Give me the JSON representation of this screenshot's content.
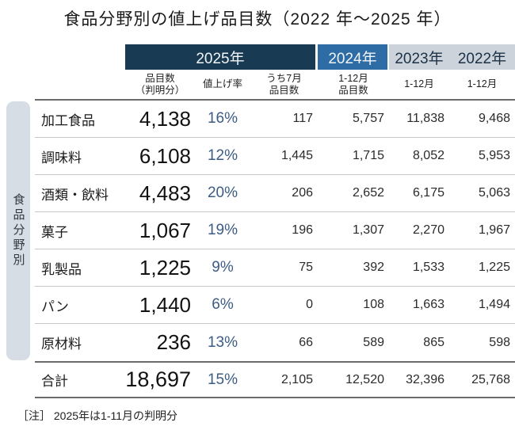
{
  "title": "食品分野別の値上げ品目数（2022 年～2025 年）",
  "side_label": "食品分野別",
  "note": "［注］ 2025年は1-11月の判明分",
  "header": {
    "years": {
      "y2025": "2025年",
      "y2024": "2024年",
      "y2023": "2023年",
      "y2022": "2022年"
    },
    "subs": {
      "items_2025": "品目数\n（判明分）",
      "rate": "値上げ率",
      "july": "うち7月\n品目数",
      "items_2024": "1-12月\n品目数",
      "m2023": "1-12月",
      "m2022": "1-12月"
    }
  },
  "rows": [
    {
      "category": "加工食品",
      "items": "4,138",
      "rate": "16%",
      "july": "117",
      "y2024": "5,757",
      "y2023": "11,838",
      "y2022": "9,468"
    },
    {
      "category": "調味料",
      "items": "6,108",
      "rate": "12%",
      "july": "1,445",
      "y2024": "1,715",
      "y2023": "8,052",
      "y2022": "5,953"
    },
    {
      "category": "酒類・飲料",
      "items": "4,483",
      "rate": "20%",
      "july": "206",
      "y2024": "2,652",
      "y2023": "6,175",
      "y2022": "5,063"
    },
    {
      "category": "菓子",
      "items": "1,067",
      "rate": "19%",
      "july": "196",
      "y2024": "1,307",
      "y2023": "2,270",
      "y2022": "1,967"
    },
    {
      "category": "乳製品",
      "items": "1,225",
      "rate": "9%",
      "july": "75",
      "y2024": "392",
      "y2023": "1,533",
      "y2022": "1,225"
    },
    {
      "category": "パン",
      "items": "1,440",
      "rate": "6%",
      "july": "0",
      "y2024": "108",
      "y2023": "1,663",
      "y2022": "1,494"
    },
    {
      "category": "原材料",
      "items": "236",
      "rate": "13%",
      "july": "66",
      "y2024": "589",
      "y2023": "865",
      "y2022": "598"
    }
  ],
  "total": {
    "category": "合計",
    "items": "18,697",
    "rate": "15%",
    "july": "2,105",
    "y2024": "12,520",
    "y2023": "32,396",
    "y2022": "25,768"
  },
  "colors": {
    "navy_header": "#183a52",
    "blue_header": "#2d6ca4",
    "gray_band": "#ccd3da",
    "side_pill": "#d6dde4",
    "percent_text": "#3c5c84"
  },
  "chart_data": {
    "type": "table",
    "title": "食品分野別の値上げ品目数（2022年～2025年）",
    "row_group_label": "食品分野別",
    "columns": [
      "2025年 品目数（判明分）",
      "2025年 値上げ率",
      "2025年 うち7月品目数",
      "2024年 1-12月品目数",
      "2023年 1-12月",
      "2022年 1-12月"
    ],
    "categories": [
      "加工食品",
      "調味料",
      "酒類・飲料",
      "菓子",
      "乳製品",
      "パン",
      "原材料",
      "合計"
    ],
    "values": [
      [
        4138,
        "16%",
        117,
        5757,
        11838,
        9468
      ],
      [
        6108,
        "12%",
        1445,
        1715,
        8052,
        5953
      ],
      [
        4483,
        "20%",
        206,
        2652,
        6175,
        5063
      ],
      [
        1067,
        "19%",
        196,
        1307,
        2270,
        1967
      ],
      [
        1225,
        "9%",
        75,
        392,
        1533,
        1225
      ],
      [
        1440,
        "6%",
        0,
        108,
        1663,
        1494
      ],
      [
        236,
        "13%",
        66,
        589,
        865,
        598
      ],
      [
        18697,
        "15%",
        2105,
        12520,
        32396,
        25768
      ]
    ],
    "note": "2025年は1-11月の判明分"
  }
}
